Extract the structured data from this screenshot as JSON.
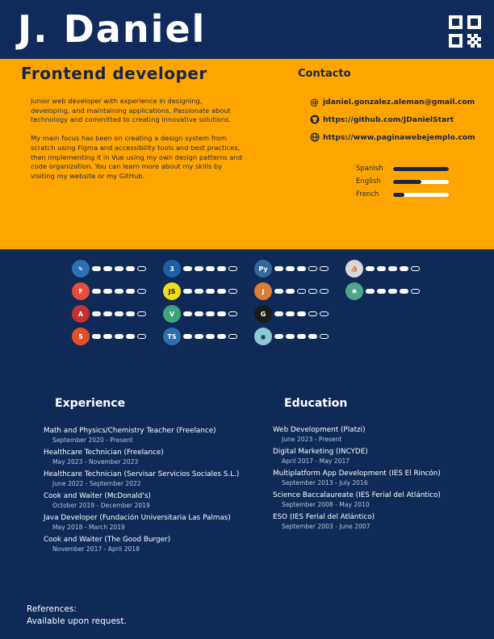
{
  "header": {
    "name": "J. Daniel"
  },
  "intro": {
    "role": "Frontend developer",
    "summary": [
      "Junior web developer with experience in designing, developing, and maintaining applications. Passionate about technology and committed to creating innovative solutions.",
      "My main focus has been on creating a design system from scratch using Figma and accessibility tools and best practices, then implementing it in Vue using my own design patterns and code organization. You can learn more about my skills by visiting my website or my GitHub."
    ]
  },
  "contact": {
    "title": "Contacto",
    "email": "jdaniel.gonzalez.aleman@gmail.com",
    "github": "https://github.com/JDanielStart",
    "website": "https://www.paginawebejemplo.com"
  },
  "languages": [
    {
      "name": "Spanish",
      "level": 1.0
    },
    {
      "name": "English",
      "level": 0.5
    },
    {
      "name": "French",
      "level": 0.2
    }
  ],
  "skills": [
    {
      "icon": "vscode-icon",
      "glyph": "✎",
      "color": "#2b6fb6",
      "level": 4
    },
    {
      "icon": "figma-icon",
      "glyph": "F",
      "color": "#e94c3d",
      "level": 4
    },
    {
      "icon": "angular-icon",
      "glyph": "A",
      "color": "#c7302f",
      "level": 4
    },
    {
      "icon": "html5-icon",
      "glyph": "5",
      "color": "#e34f26",
      "level": 4
    },
    {
      "icon": "css3-icon",
      "glyph": "3",
      "color": "#1f5fa8",
      "level": 4
    },
    {
      "icon": "javascript-icon",
      "glyph": "JS",
      "color": "#f0db1e",
      "level": 4
    },
    {
      "icon": "vue-icon",
      "glyph": "V",
      "color": "#3ea57a",
      "level": 4
    },
    {
      "icon": "typescript-icon",
      "glyph": "TS",
      "color": "#2d6db0",
      "level": 4
    },
    {
      "icon": "python-icon",
      "glyph": "Py",
      "color": "#35689a",
      "level": 3
    },
    {
      "icon": "java-icon",
      "glyph": "J",
      "color": "#d97d36",
      "level": 2
    },
    {
      "icon": "github-icon",
      "glyph": "G",
      "color": "#1a1a1a",
      "level": 3
    },
    {
      "icon": "copilot-icon",
      "glyph": "◉",
      "color": "#8fc9d8",
      "level": 4
    },
    {
      "icon": "docker-icon",
      "glyph": "⛵",
      "color": "#d8d8d8",
      "level": 4
    },
    {
      "icon": "openai-icon",
      "glyph": "✺",
      "color": "#4ea58a",
      "level": 4
    }
  ],
  "experience": {
    "title": "Experience",
    "items": [
      {
        "title": "Math and Physics/Chemistry Teacher (Freelance)",
        "date": "September 2020 - Present"
      },
      {
        "title": "Healthcare Technician (Freelance)",
        "date": "May 2023 - November 2023"
      },
      {
        "title": "Healthcare Technician (Servisar Servicios Sociales S.L.)",
        "date": "June 2022 - September 2022"
      },
      {
        "title": "Cook and Waiter (McDonald's)",
        "date": "October 2019 - December 2019"
      },
      {
        "title": "Java Developer (Fundación Universitaria Las Palmas)",
        "date": "May 2018 - March 2019"
      },
      {
        "title": "Cook and Waiter (The Good Burger)",
        "date": "November 2017 - April 2018"
      }
    ]
  },
  "education": {
    "title": "Education",
    "items": [
      {
        "title": "Web Development (Platzi)",
        "date": "June 2023 - Present"
      },
      {
        "title": "Digital Marketing (INCYDE)",
        "date": "April 2017 - May 2017"
      },
      {
        "title": "Multiplatform App Development (IES El Rincón)",
        "date": "September 2013 - July 2016"
      },
      {
        "title": "Science Baccalaureate (IES Ferial del Atlántico)",
        "date": "September 2008 - May 2010"
      },
      {
        "title": "ESO (IES Ferial del Atlántico)",
        "date": "September 2003 - June 2007"
      }
    ]
  },
  "references": {
    "label": "References:",
    "text": "Available upon request."
  }
}
